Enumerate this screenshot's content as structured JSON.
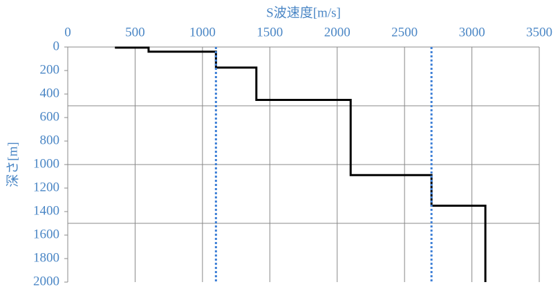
{
  "chart_data": {
    "type": "line",
    "title": "S波速度[m/s]",
    "y_label": "深さ[m]",
    "x_axis_position": "top",
    "y_inverted": true,
    "xlim": [
      0,
      3500
    ],
    "xticks": [
      0,
      500,
      1000,
      1500,
      2000,
      2500,
      3000,
      3500
    ],
    "ylim": [
      0,
      2000
    ],
    "yticks": [
      0,
      200,
      400,
      600,
      800,
      1000,
      1200,
      1400,
      1600,
      1800,
      2000
    ],
    "x_grid": true,
    "y_grid_lines": [
      500,
      1000,
      1500
    ],
    "label_color": "#4a86c5",
    "series": [
      {
        "color": "#000000",
        "dashed": false,
        "x": [
          350,
          600,
          600,
          1100,
          1100,
          1400,
          1400,
          2100,
          2100,
          2700,
          2700,
          3100,
          3100
        ],
        "values": [
          5,
          5,
          40,
          40,
          175,
          175,
          450,
          450,
          1090,
          1090,
          1350,
          1350,
          2000
        ]
      },
      {
        "color": "#3d7fd6",
        "dashed": true,
        "x": [
          1100,
          1100
        ],
        "values": [
          0,
          2000
        ]
      },
      {
        "color": "#3d7fd6",
        "dashed": true,
        "x": [
          2700,
          2700
        ],
        "values": [
          0,
          2000
        ]
      }
    ]
  }
}
